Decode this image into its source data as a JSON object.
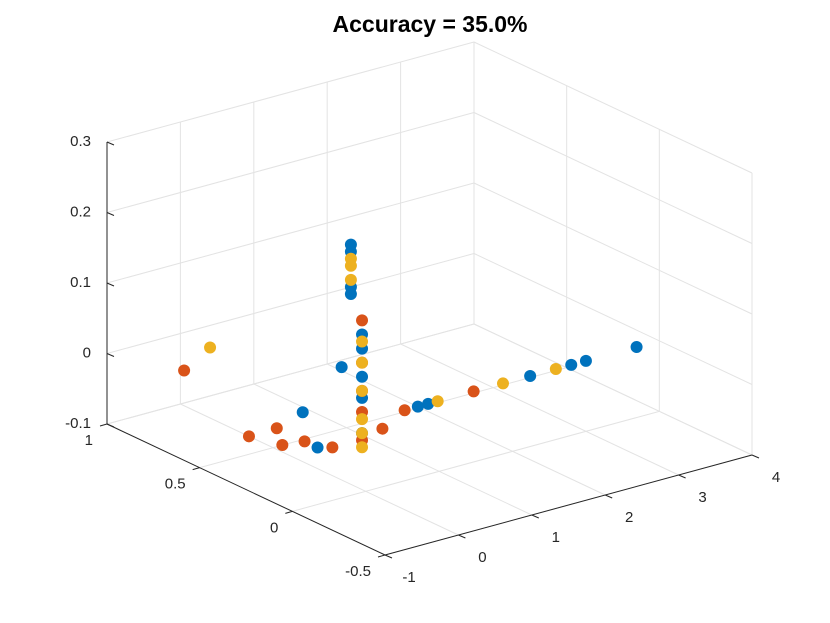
{
  "chart_data": {
    "type": "scatter3d",
    "title": "Accuracy = 35.0%",
    "xlim": [
      -1,
      4
    ],
    "xticks": [
      -1,
      0,
      1,
      2,
      3,
      4
    ],
    "ylim": [
      -0.5,
      1
    ],
    "yticks": [
      -0.5,
      0,
      0.5,
      1
    ],
    "zlim": [
      -0.1,
      0.3
    ],
    "zticks": [
      -0.1,
      0,
      0.1,
      0.2,
      0.3
    ],
    "grid": true,
    "series": [
      {
        "color": "#0072BD",
        "x": [
          0,
          0,
          0,
          0,
          0,
          0,
          0,
          0,
          0,
          0,
          0,
          0,
          0.71,
          0.85,
          2.24,
          2.8,
          3.0,
          3.69
        ],
        "y": [
          0.08,
          0.08,
          0.08,
          0.08,
          0.02,
          0.02,
          0.02,
          0.02,
          0.26,
          0.34,
          0.13,
          0.02,
          0,
          0,
          0,
          0,
          0,
          0
        ],
        "z": [
          0.24,
          0.23,
          0.18,
          0.17,
          0.12,
          0.1,
          0.06,
          0.03,
          -0.07,
          -0.03,
          0.06,
          -0.02,
          0,
          0,
          0,
          0,
          0,
          0
        ]
      },
      {
        "color": "#D95319",
        "x": [
          0,
          0,
          0,
          0,
          0,
          0,
          0,
          0,
          0,
          0,
          0,
          0,
          0.53,
          1.47
        ],
        "y": [
          0.98,
          0.63,
          0.48,
          0.45,
          0.33,
          0.18,
          0.02,
          0.02,
          0.02,
          0.02,
          -0.09,
          0.02,
          0,
          0
        ],
        "z": [
          -0.05,
          -0.1,
          -0.07,
          -0.09,
          -0.07,
          -0.06,
          0.14,
          0.08,
          0.01,
          -0.03,
          0,
          0.04,
          0,
          0
        ]
      },
      {
        "color": "#EDB120",
        "x": [
          0,
          0,
          0,
          0,
          0,
          0,
          0,
          0,
          0,
          0,
          0.98,
          1.87,
          2.59
        ],
        "y": [
          0.84,
          0.08,
          0.08,
          0.08,
          0.02,
          0.02,
          0.02,
          0.02,
          0.02,
          0.02,
          0,
          0,
          0
        ],
        "z": [
          0,
          0.22,
          0.21,
          0.19,
          0.11,
          0.08,
          0.04,
          0,
          -0.02,
          -0.04,
          0,
          0,
          0
        ]
      }
    ]
  }
}
